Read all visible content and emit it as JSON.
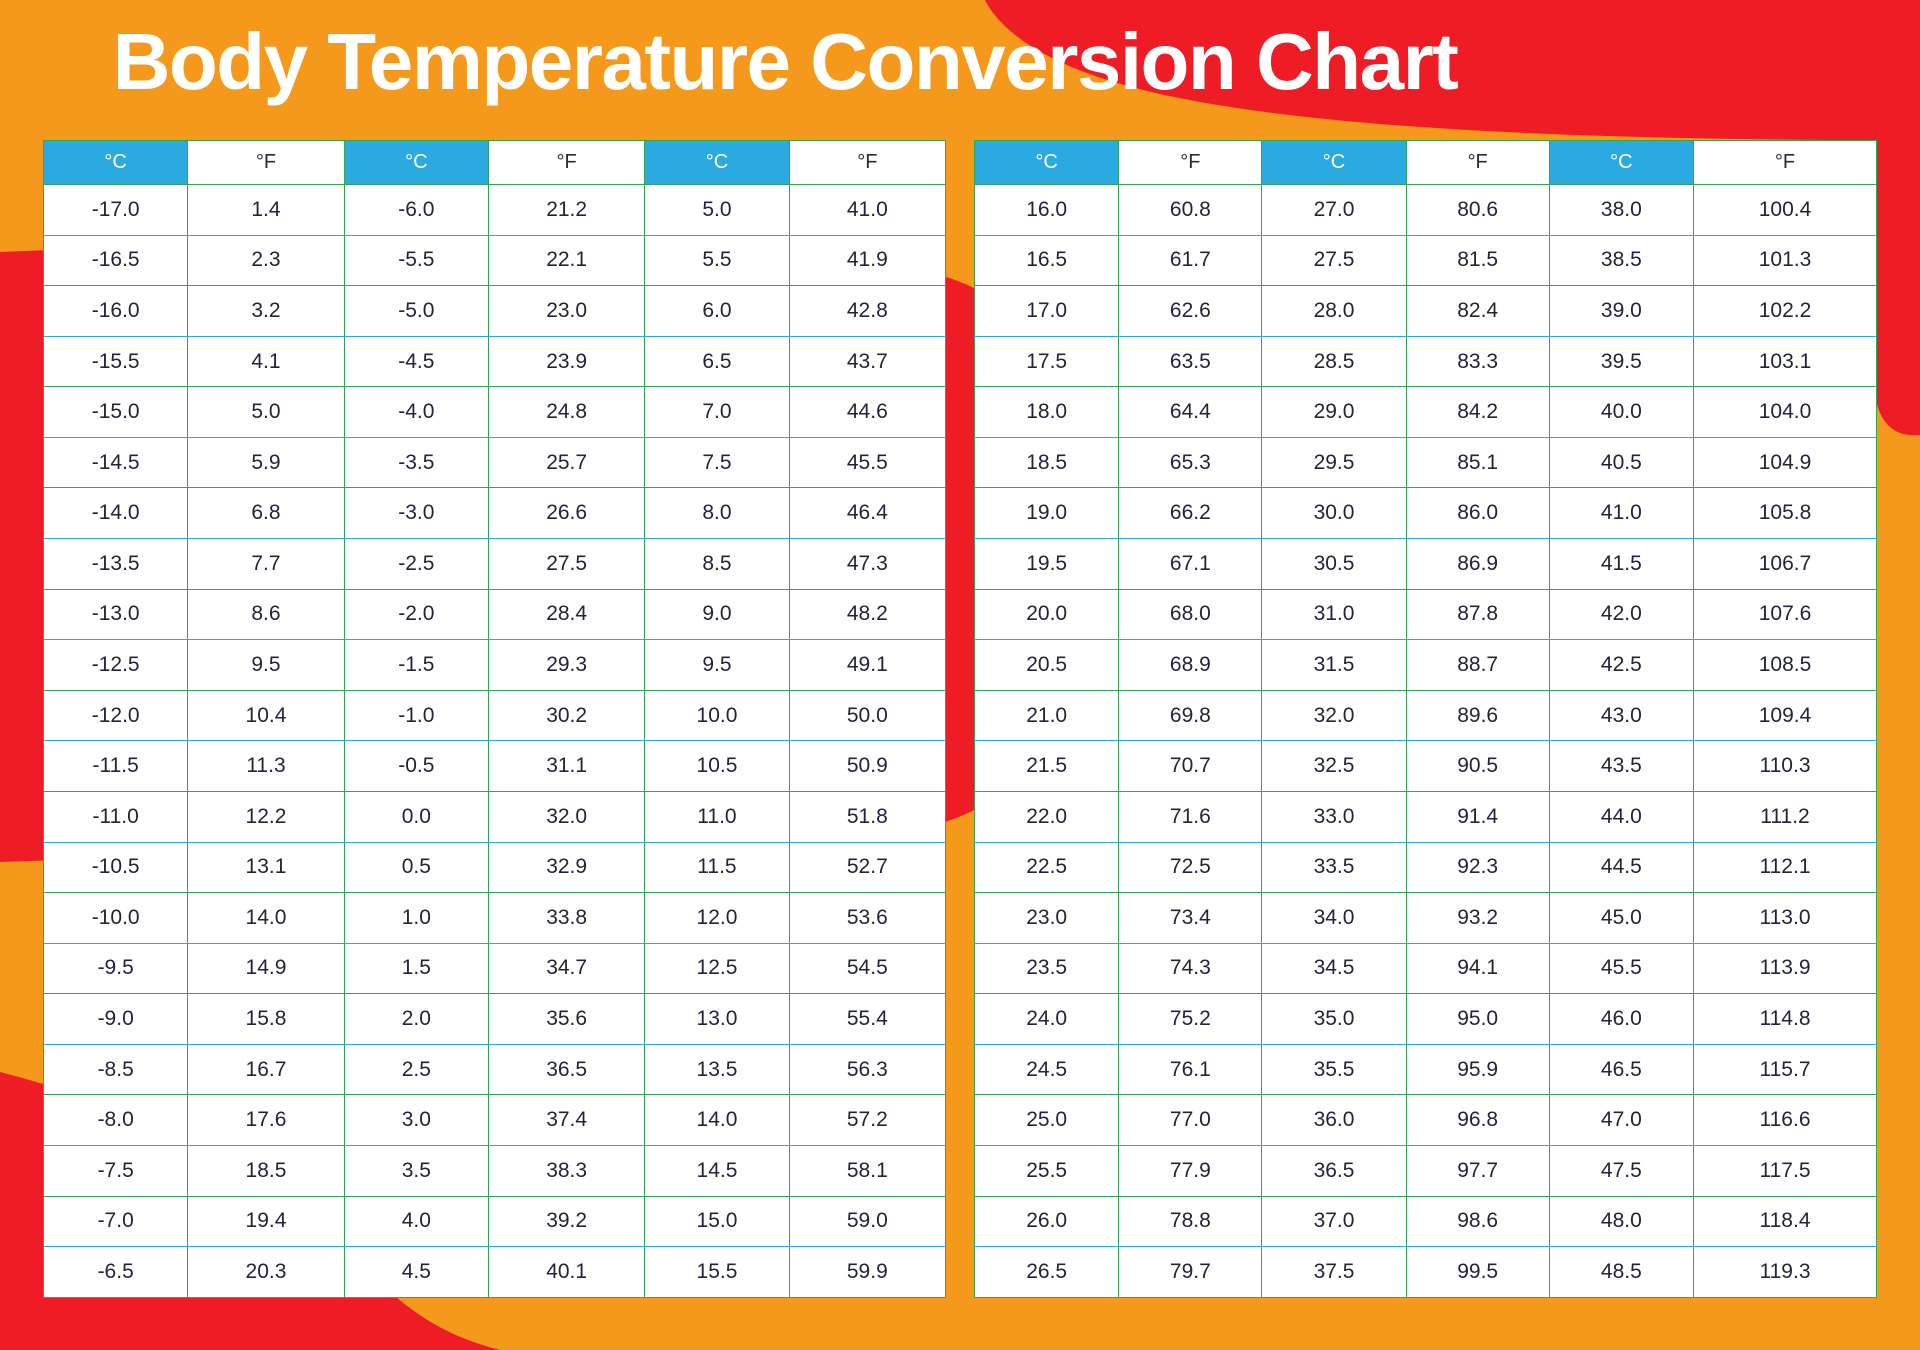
{
  "title": "Body Temperature Conversion Chart",
  "colors": {
    "background_orange": "#F5991C",
    "accent_red": "#EE1C25",
    "header_blue": "#2BAAE2",
    "grid_green": "#2FA84F",
    "grid_blue": "#2BAAE2",
    "title_white": "#FFFFFF"
  },
  "tables": [
    {
      "name": "left-conversion-table",
      "headers": [
        "°C",
        "°F",
        "°C",
        "°F",
        "°C",
        "°F"
      ],
      "rows": [
        [
          "-17.0",
          "1.4",
          "-6.0",
          "21.2",
          "5.0",
          "41.0"
        ],
        [
          "-16.5",
          "2.3",
          "-5.5",
          "22.1",
          "5.5",
          "41.9"
        ],
        [
          "-16.0",
          "3.2",
          "-5.0",
          "23.0",
          "6.0",
          "42.8"
        ],
        [
          "-15.5",
          "4.1",
          "-4.5",
          "23.9",
          "6.5",
          "43.7"
        ],
        [
          "-15.0",
          "5.0",
          "-4.0",
          "24.8",
          "7.0",
          "44.6"
        ],
        [
          "-14.5",
          "5.9",
          "-3.5",
          "25.7",
          "7.5",
          "45.5"
        ],
        [
          "-14.0",
          "6.8",
          "-3.0",
          "26.6",
          "8.0",
          "46.4"
        ],
        [
          "-13.5",
          "7.7",
          "-2.5",
          "27.5",
          "8.5",
          "47.3"
        ],
        [
          "-13.0",
          "8.6",
          "-2.0",
          "28.4",
          "9.0",
          "48.2"
        ],
        [
          "-12.5",
          "9.5",
          "-1.5",
          "29.3",
          "9.5",
          "49.1"
        ],
        [
          "-12.0",
          "10.4",
          "-1.0",
          "30.2",
          "10.0",
          "50.0"
        ],
        [
          "-11.5",
          "11.3",
          "-0.5",
          "31.1",
          "10.5",
          "50.9"
        ],
        [
          "-11.0",
          "12.2",
          "0.0",
          "32.0",
          "11.0",
          "51.8"
        ],
        [
          "-10.5",
          "13.1",
          "0.5",
          "32.9",
          "11.5",
          "52.7"
        ],
        [
          "-10.0",
          "14.0",
          "1.0",
          "33.8",
          "12.0",
          "53.6"
        ],
        [
          "-9.5",
          "14.9",
          "1.5",
          "34.7",
          "12.5",
          "54.5"
        ],
        [
          "-9.0",
          "15.8",
          "2.0",
          "35.6",
          "13.0",
          "55.4"
        ],
        [
          "-8.5",
          "16.7",
          "2.5",
          "36.5",
          "13.5",
          "56.3"
        ],
        [
          "-8.0",
          "17.6",
          "3.0",
          "37.4",
          "14.0",
          "57.2"
        ],
        [
          "-7.5",
          "18.5",
          "3.5",
          "38.3",
          "14.5",
          "58.1"
        ],
        [
          "-7.0",
          "19.4",
          "4.0",
          "39.2",
          "15.0",
          "59.0"
        ],
        [
          "-6.5",
          "20.3",
          "4.5",
          "40.1",
          "15.5",
          "59.9"
        ]
      ]
    },
    {
      "name": "right-conversion-table",
      "headers": [
        "°C",
        "°F",
        "°C",
        "°F",
        "°C",
        "°F"
      ],
      "rows": [
        [
          "16.0",
          "60.8",
          "27.0",
          "80.6",
          "38.0",
          "100.4"
        ],
        [
          "16.5",
          "61.7",
          "27.5",
          "81.5",
          "38.5",
          "101.3"
        ],
        [
          "17.0",
          "62.6",
          "28.0",
          "82.4",
          "39.0",
          "102.2"
        ],
        [
          "17.5",
          "63.5",
          "28.5",
          "83.3",
          "39.5",
          "103.1"
        ],
        [
          "18.0",
          "64.4",
          "29.0",
          "84.2",
          "40.0",
          "104.0"
        ],
        [
          "18.5",
          "65.3",
          "29.5",
          "85.1",
          "40.5",
          "104.9"
        ],
        [
          "19.0",
          "66.2",
          "30.0",
          "86.0",
          "41.0",
          "105.8"
        ],
        [
          "19.5",
          "67.1",
          "30.5",
          "86.9",
          "41.5",
          "106.7"
        ],
        [
          "20.0",
          "68.0",
          "31.0",
          "87.8",
          "42.0",
          "107.6"
        ],
        [
          "20.5",
          "68.9",
          "31.5",
          "88.7",
          "42.5",
          "108.5"
        ],
        [
          "21.0",
          "69.8",
          "32.0",
          "89.6",
          "43.0",
          "109.4"
        ],
        [
          "21.5",
          "70.7",
          "32.5",
          "90.5",
          "43.5",
          "110.3"
        ],
        [
          "22.0",
          "71.6",
          "33.0",
          "91.4",
          "44.0",
          "111.2"
        ],
        [
          "22.5",
          "72.5",
          "33.5",
          "92.3",
          "44.5",
          "112.1"
        ],
        [
          "23.0",
          "73.4",
          "34.0",
          "93.2",
          "45.0",
          "113.0"
        ],
        [
          "23.5",
          "74.3",
          "34.5",
          "94.1",
          "45.5",
          "113.9"
        ],
        [
          "24.0",
          "75.2",
          "35.0",
          "95.0",
          "46.0",
          "114.8"
        ],
        [
          "24.5",
          "76.1",
          "35.5",
          "95.9",
          "46.5",
          "115.7"
        ],
        [
          "25.0",
          "77.0",
          "36.0",
          "96.8",
          "47.0",
          "116.6"
        ],
        [
          "25.5",
          "77.9",
          "36.5",
          "97.7",
          "47.5",
          "117.5"
        ],
        [
          "26.0",
          "78.8",
          "37.0",
          "98.6",
          "48.0",
          "118.4"
        ],
        [
          "26.5",
          "79.7",
          "37.5",
          "99.5",
          "48.5",
          "119.3"
        ]
      ]
    }
  ]
}
